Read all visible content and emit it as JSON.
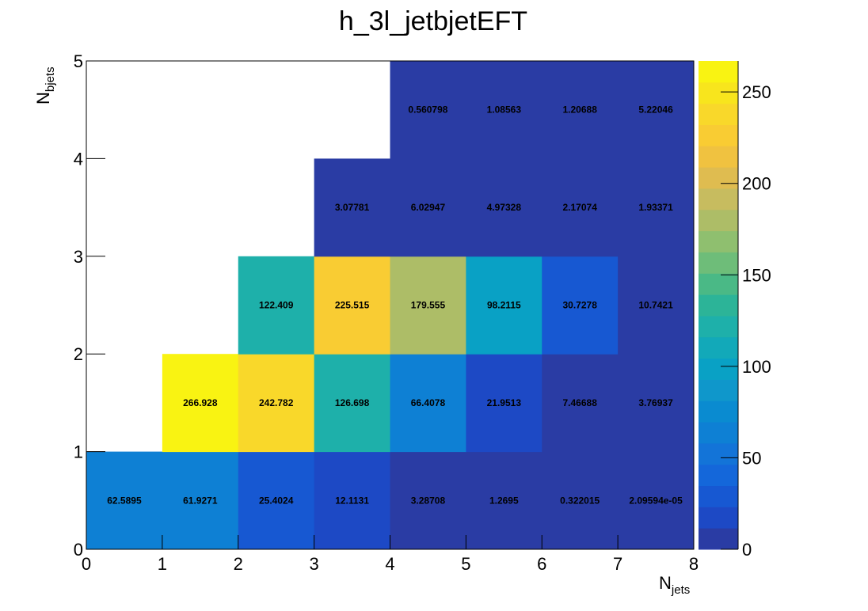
{
  "chart_data": {
    "type": "heatmap",
    "title": "h_3l_jetbjetEFT",
    "xlabel": {
      "main": "N",
      "sub": "jets"
    },
    "ylabel": {
      "main": "N",
      "sub": "bjets"
    },
    "xlim": [
      0,
      8
    ],
    "ylim": [
      0,
      5
    ],
    "x_ticks": [
      "0",
      "1",
      "2",
      "3",
      "4",
      "5",
      "6",
      "7",
      "8"
    ],
    "y_ticks": [
      "0",
      "1",
      "2",
      "3",
      "4",
      "5"
    ],
    "colorbar": {
      "range": [
        0,
        266.928
      ],
      "ticks": [
        "0",
        "50",
        "100",
        "150",
        "200",
        "250"
      ]
    },
    "cells": [
      {
        "x": 0,
        "y": 0,
        "value": 62.5895,
        "label": "62.5895"
      },
      {
        "x": 1,
        "y": 0,
        "value": 61.9271,
        "label": "61.9271"
      },
      {
        "x": 2,
        "y": 0,
        "value": 25.4024,
        "label": "25.4024"
      },
      {
        "x": 3,
        "y": 0,
        "value": 12.1131,
        "label": "12.1131"
      },
      {
        "x": 4,
        "y": 0,
        "value": 3.28708,
        "label": "3.28708"
      },
      {
        "x": 5,
        "y": 0,
        "value": 1.2695,
        "label": "1.2695"
      },
      {
        "x": 6,
        "y": 0,
        "value": 0.322015,
        "label": "0.322015"
      },
      {
        "x": 7,
        "y": 0,
        "value": 2.09594e-05,
        "label": "2.09594e-05"
      },
      {
        "x": 1,
        "y": 1,
        "value": 266.928,
        "label": "266.928"
      },
      {
        "x": 2,
        "y": 1,
        "value": 242.782,
        "label": "242.782"
      },
      {
        "x": 3,
        "y": 1,
        "value": 126.698,
        "label": "126.698"
      },
      {
        "x": 4,
        "y": 1,
        "value": 66.4078,
        "label": "66.4078"
      },
      {
        "x": 5,
        "y": 1,
        "value": 21.9513,
        "label": "21.9513"
      },
      {
        "x": 6,
        "y": 1,
        "value": 7.46688,
        "label": "7.46688"
      },
      {
        "x": 7,
        "y": 1,
        "value": 3.76937,
        "label": "3.76937"
      },
      {
        "x": 2,
        "y": 2,
        "value": 122.409,
        "label": "122.409"
      },
      {
        "x": 3,
        "y": 2,
        "value": 225.515,
        "label": "225.515"
      },
      {
        "x": 4,
        "y": 2,
        "value": 179.555,
        "label": "179.555"
      },
      {
        "x": 5,
        "y": 2,
        "value": 98.2115,
        "label": "98.2115"
      },
      {
        "x": 6,
        "y": 2,
        "value": 30.7278,
        "label": "30.7278"
      },
      {
        "x": 7,
        "y": 2,
        "value": 10.7421,
        "label": "10.7421"
      },
      {
        "x": 3,
        "y": 3,
        "value": 3.07781,
        "label": "3.07781"
      },
      {
        "x": 4,
        "y": 3,
        "value": 6.02947,
        "label": "6.02947"
      },
      {
        "x": 5,
        "y": 3,
        "value": 4.97328,
        "label": "4.97328"
      },
      {
        "x": 6,
        "y": 3,
        "value": 2.17074,
        "label": "2.17074"
      },
      {
        "x": 7,
        "y": 3,
        "value": 1.93371,
        "label": "1.93371"
      },
      {
        "x": 4,
        "y": 4,
        "value": 0.560798,
        "label": "0.560798"
      },
      {
        "x": 5,
        "y": 4,
        "value": 1.08563,
        "label": "1.08563"
      },
      {
        "x": 6,
        "y": 4,
        "value": 1.20688,
        "label": "1.20688"
      },
      {
        "x": 7,
        "y": 4,
        "value": 5.22046,
        "label": "5.22046"
      }
    ],
    "palette": [
      "#2a3ca4",
      "#1d49c5",
      "#1758d2",
      "#1467da",
      "#1374d8",
      "#0e80d4",
      "#0a8bd0",
      "#0f97cb",
      "#09a1c5",
      "#12a9b9",
      "#1eb0aa",
      "#2cb498",
      "#4ab986",
      "#6ebd79",
      "#8fbf6f",
      "#adbd67",
      "#c7bc5f",
      "#dfbc50",
      "#f0c240",
      "#f9cc33",
      "#f9d82a",
      "#f8e51d",
      "#f9f312"
    ]
  }
}
